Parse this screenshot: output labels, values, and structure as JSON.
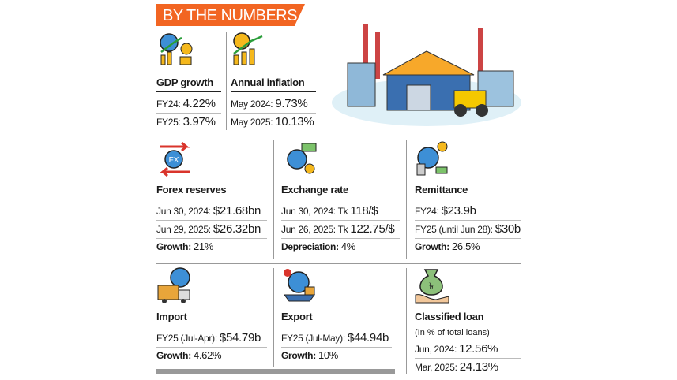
{
  "header": {
    "title": "BY THE NUMBERS"
  },
  "indicators": [
    {
      "title": "GDP growth",
      "lines": [
        {
          "label": "FY24:",
          "value": "4.22%"
        },
        {
          "label": "FY25:",
          "value": "3.97%"
        }
      ]
    },
    {
      "title": "Annual inflation",
      "lines": [
        {
          "label": "May 2024:",
          "value": "9.73%"
        },
        {
          "label": "May 2025:",
          "value": "10.13%"
        }
      ]
    },
    {
      "title": "Forex reserves",
      "lines": [
        {
          "label": "Jun 30, 2024:",
          "value": "$21.68bn"
        },
        {
          "label": "Jun 29, 2025:",
          "value": "$26.32bn"
        },
        {
          "label": "Growth:",
          "value": "21%",
          "bold": true
        }
      ]
    },
    {
      "title": "Exchange rate",
      "lines": [
        {
          "label": "Jun 30, 2024: Tk",
          "value": "118/$"
        },
        {
          "label": "Jun 26, 2025: Tk",
          "value": "122.75/$"
        },
        {
          "label": "Depreciation:",
          "value": "4%",
          "bold": true
        }
      ]
    },
    {
      "title": "Remittance",
      "lines": [
        {
          "label": "FY24:",
          "value": "$23.9b"
        },
        {
          "label": "FY25 (until Jun 28):",
          "value": "$30b"
        },
        {
          "label": "Growth:",
          "value": "26.5%",
          "bold": true
        }
      ]
    },
    {
      "title": "Import",
      "lines": [
        {
          "label": "FY25 (Jul-Apr):",
          "value": "$54.79b"
        },
        {
          "label": "Growth:",
          "value": "4.62%",
          "bold": true
        }
      ]
    },
    {
      "title": "Export",
      "lines": [
        {
          "label": "FY25 (Jul-May):",
          "value": "$44.94b"
        },
        {
          "label": "Growth:",
          "value": "10%",
          "bold": true
        }
      ]
    },
    {
      "title": "Classified loan",
      "subtitle": "(In % of total loans)",
      "lines": [
        {
          "label": "Jun, 2024:",
          "value": "12.56%"
        },
        {
          "label": "Mar, 2025:",
          "value": "24.13%"
        }
      ]
    }
  ]
}
